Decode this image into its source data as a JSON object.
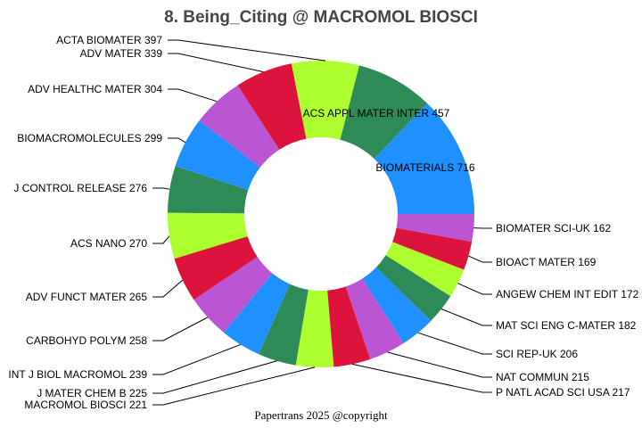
{
  "chart_data": {
    "type": "pie",
    "variant": "donut",
    "title": "8. Being_Citing @ MACROMOL BIOSCI",
    "start_angle": "3 o'clock, counterclockwise",
    "categories": [
      "BIOMATERIALS",
      "ACS APPL MATER INTER",
      "ACTA BIOMATER",
      "ADV MATER",
      "ADV HEALTHC MATER",
      "BIOMACROMOLECULES",
      "J CONTROL RELEASE",
      "ACS NANO",
      "ADV FUNCT MATER",
      "CARBOHYD POLYM",
      "INT J BIOL MACROMOL",
      "J MATER CHEM B",
      "MACROMOL BIOSCI",
      "P NATL ACAD SCI USA",
      "NAT COMMUN",
      "SCI REP-UK",
      "MAT SCI ENG C-MATER",
      "ANGEW CHEM INT EDIT",
      "BIOACT MATER",
      "BIOMATER SCI-UK"
    ],
    "values": [
      716,
      457,
      397,
      339,
      304,
      299,
      276,
      270,
      265,
      258,
      239,
      225,
      221,
      217,
      215,
      206,
      182,
      172,
      169,
      162
    ],
    "palette": [
      "#1E90FF",
      "#2E8B57",
      "#ADFF2F",
      "#DC143C",
      "#BA55D3"
    ],
    "legend": "none"
  },
  "footer": "Papertrans 2025 @copyright"
}
